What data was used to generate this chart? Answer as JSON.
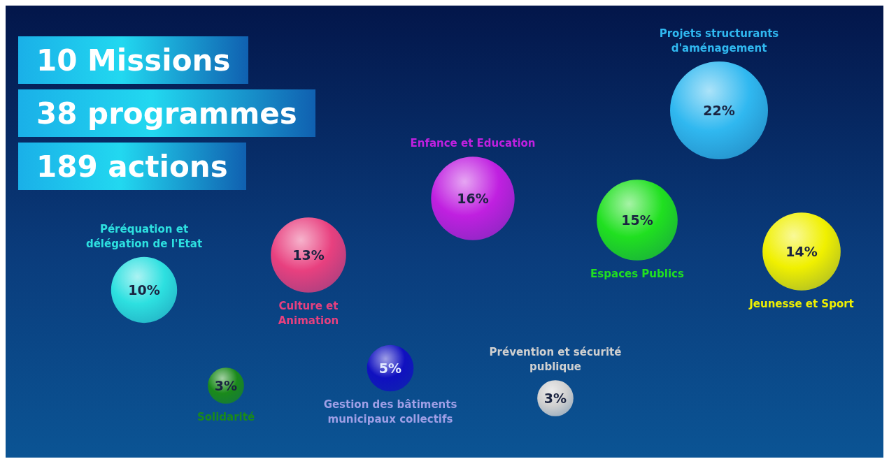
{
  "chart_data": {
    "type": "other",
    "annotations": [
      "10 Missions",
      "38 programmes",
      "189 actions"
    ],
    "categories": [
      "Projets structurants d'aménagement",
      "Enfance et Education",
      "Espaces Publics",
      "Jeunesse et Sport",
      "Culture et Animation",
      "Péréquation et délégation de l'Etat",
      "Gestion des bâtiments municipaux collectifs",
      "Solidarité",
      "Prévention et sécurité publique"
    ],
    "values": [
      22,
      16,
      15,
      14,
      13,
      10,
      5,
      3,
      3
    ],
    "value_labels": [
      "22%",
      "16%",
      "15%",
      "14%",
      "13%",
      "10%",
      "5%",
      "3%",
      "3%"
    ],
    "colors": [
      "#30b8f0",
      "#c020e0",
      "#20e020",
      "#f0f000",
      "#e8407f",
      "#2de0e0",
      "#1010c0",
      "#1a8a1a",
      "#d0d0d0"
    ]
  }
}
